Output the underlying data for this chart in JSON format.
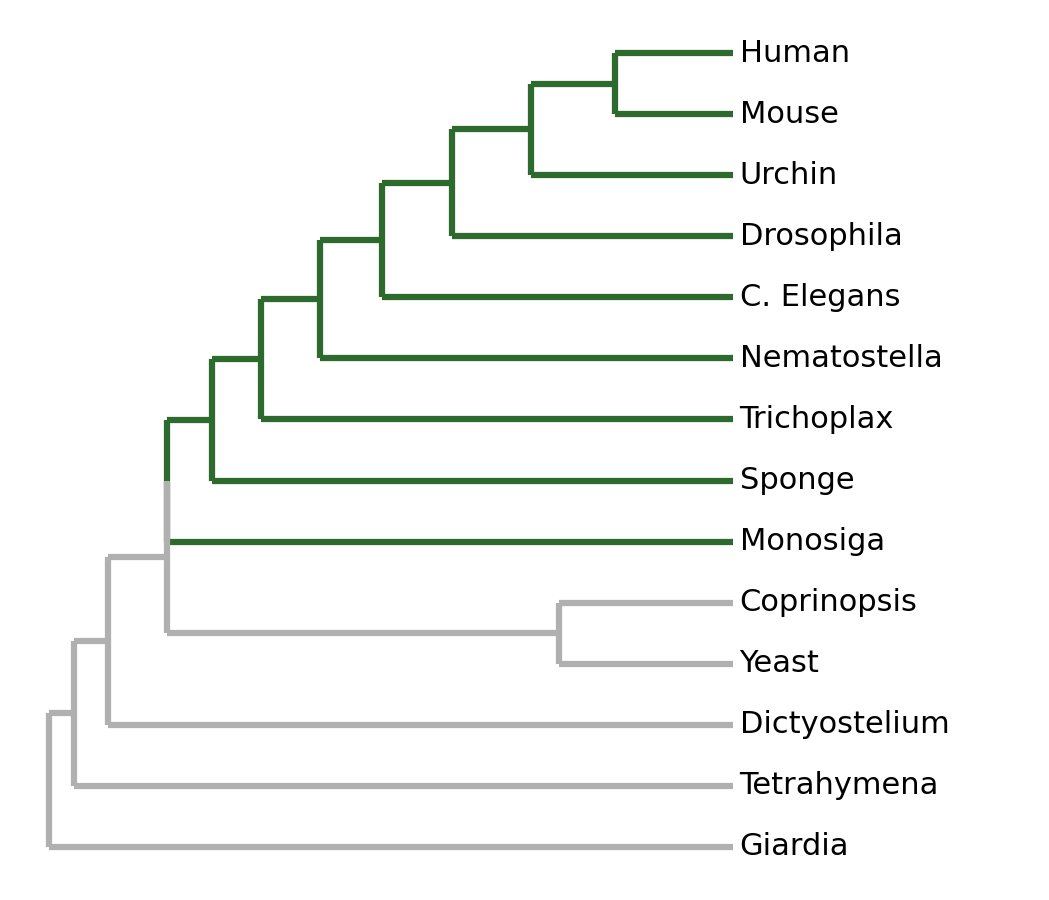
{
  "taxa": [
    "Human",
    "Mouse",
    "Urchin",
    "Drosophila",
    "C. Elegans",
    "Nematostella",
    "Trichoplax",
    "Sponge",
    "Monosiga",
    "Coprinopsis",
    "Yeast",
    "Dictyostelium",
    "Tetrahymena",
    "Giardia"
  ],
  "green_color": "#2d6a2d",
  "gray_color": "#b0b0b0",
  "background_color": "#ffffff",
  "linewidth": 4.5,
  "font_size": 22,
  "font_color": "#000000"
}
